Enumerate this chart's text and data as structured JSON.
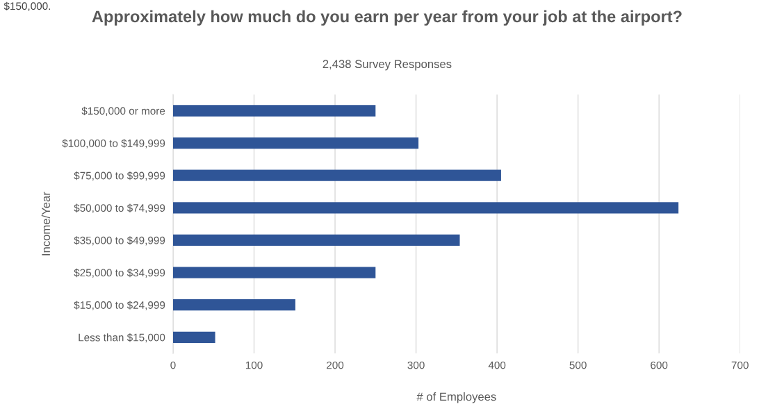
{
  "chart_data": {
    "type": "bar",
    "orientation": "horizontal",
    "title": "Approximately how much do you earn per year from your job at the airport?",
    "subtitle": "2,438 Survey Responses",
    "xlabel": "# of Employees",
    "ylabel": "Income/Year",
    "categories": [
      "$150,000 or more",
      "$100,000 to $149,999",
      "$75,000 to $99,999",
      "$50,000 to $74,999",
      "$35,000 to $49,999",
      "$25,000 to $34,999",
      "$15,000 to $24,999",
      "Less than $15,000"
    ],
    "values": [
      250,
      303,
      405,
      624,
      354,
      250,
      151,
      52
    ],
    "color": "#2f5597",
    "xlim": [
      0,
      700
    ],
    "xticks": [
      0,
      100,
      200,
      300,
      400,
      500,
      600,
      700
    ],
    "grid": "x",
    "annotations": [
      "$150,000."
    ]
  }
}
